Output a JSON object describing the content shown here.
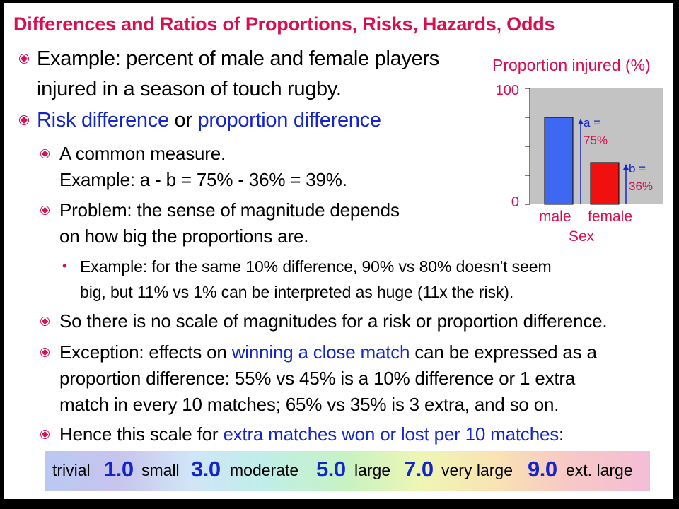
{
  "title": "Differences and Ratios of Proportions, Risks, Hazards, Odds",
  "bullets": {
    "b1_line1": "Example: percent of male and female players",
    "b1_line2": "injured in a season of touch rugby.",
    "b2_part1": "Risk difference",
    "b2_part2": " or ",
    "b2_part3": "proportion difference",
    "s1_line1": "A common measure.",
    "s1_line2": "Example: a - b = 75% - 36% = 39%.",
    "s2_line1": "Problem: the sense of magnitude depends",
    "s2_line2": "on how big the proportions are.",
    "t1_line1": "Example: for the same 10% difference, 90% vs 80% doesn't seem",
    "t1_line2": "big, but 11% vs 1% can be interpreted as huge (11x the risk).",
    "s3_line1": "So there is no scale of magnitudes for a risk or proportion difference.",
    "s4_line1_a": "Exception: effects on ",
    "s4_line1_b": "winning a close match",
    "s4_line1_c": " can be expressed as a",
    "s4_line2": "proportion difference: 55% vs 45% is a 10% difference or 1 extra",
    "s4_line3": "match in every 10 matches; 65% vs 35% is 3 extra, and so on.",
    "s5_a": "Hence this scale for ",
    "s5_b": "extra matches won or lost per 10 matches",
    "s5_c": ":"
  },
  "chart_data": {
    "type": "bar",
    "title": "Proportion injured (%)",
    "xlabel": "Sex",
    "ylabel": "",
    "categories": [
      "male",
      "female"
    ],
    "values": [
      75,
      36
    ],
    "ylim": [
      0,
      100
    ],
    "yticks": [
      "100",
      "0"
    ],
    "annotations": [
      {
        "label": "a =",
        "value": "75%"
      },
      {
        "label": "b =",
        "value": "36%"
      }
    ],
    "colors": {
      "male": "#3f68f2",
      "female": "#f01010",
      "plot_bg": "#c3c3c3"
    }
  },
  "scale": {
    "items": [
      {
        "word": "trivial",
        "num": "1.0"
      },
      {
        "word": "small",
        "num": "3.0"
      },
      {
        "word": "moderate",
        "num": "5.0"
      },
      {
        "word": "large",
        "num": "7.0"
      },
      {
        "word": "very large",
        "num": "9.0"
      },
      {
        "word": "ext. large",
        "num": ""
      }
    ]
  }
}
